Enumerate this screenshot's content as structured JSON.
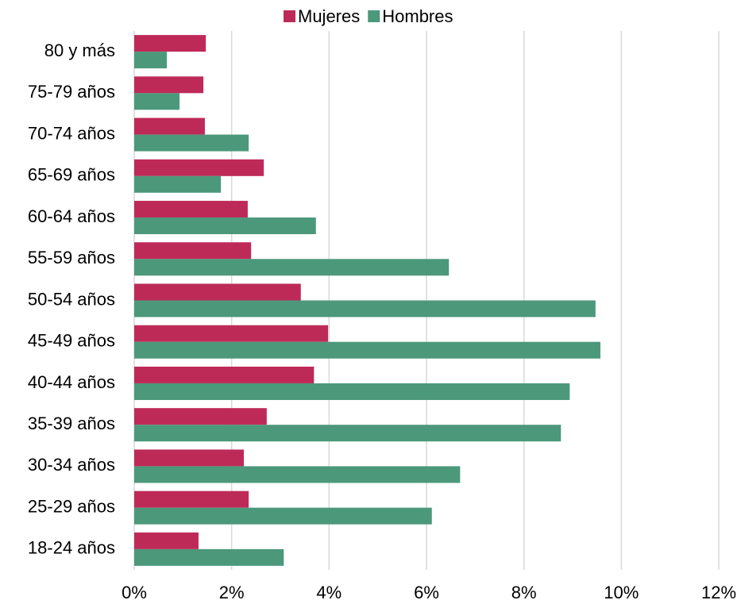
{
  "chart_data": {
    "type": "bar",
    "orientation": "horizontal",
    "categories": [
      "80 y más",
      "75-79 años",
      "70-74 años",
      "65-69 años",
      "60-64 años",
      "55-59 años",
      "50-54 años",
      "45-49 años",
      "40-44 años",
      "35-39 años",
      "30-34 años",
      "25-29 años",
      "18-24 años"
    ],
    "series": [
      {
        "name": "Mujeres",
        "color": "#be2a58",
        "values": [
          1.47,
          1.42,
          1.45,
          2.66,
          2.33,
          2.4,
          3.42,
          3.98,
          3.69,
          2.72,
          2.25,
          2.35,
          1.32
        ]
      },
      {
        "name": "Hombres",
        "color": "#4c987b",
        "values": [
          0.67,
          0.93,
          2.35,
          1.78,
          3.73,
          6.46,
          9.47,
          9.57,
          8.94,
          8.76,
          6.69,
          6.11,
          3.07
        ]
      }
    ],
    "xlim": [
      0,
      12
    ],
    "xticks": [
      {
        "value": 0,
        "label": "0%"
      },
      {
        "value": 2,
        "label": "2%"
      },
      {
        "value": 4,
        "label": "4%"
      },
      {
        "value": 6,
        "label": "6%"
      },
      {
        "value": 8,
        "label": "8%"
      },
      {
        "value": 10,
        "label": "10%"
      },
      {
        "value": 12,
        "label": "12%"
      }
    ],
    "grid": true,
    "legend": "top"
  }
}
